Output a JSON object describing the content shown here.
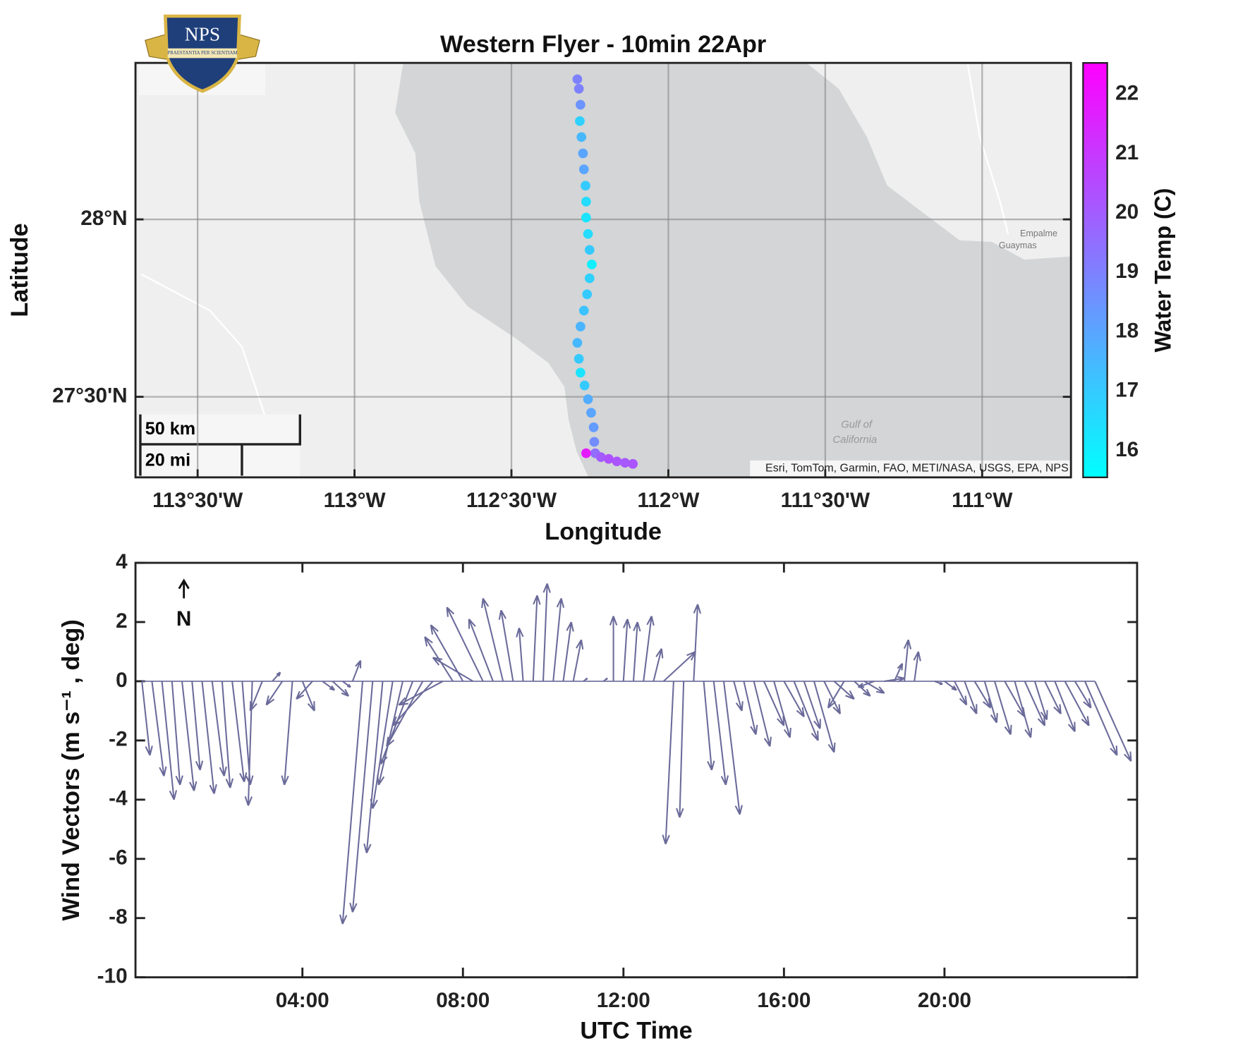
{
  "chart_data": [
    {
      "type": "scatter",
      "title": "Western Flyer - 10min 22Apr",
      "xlabel": "Longitude",
      "ylabel": "Latitude",
      "xlim": [
        -113.698,
        -110.717
      ],
      "ylim": [
        27.273,
        28.441
      ],
      "xticks": [
        {
          "value": -113.5,
          "label": "113°30'W"
        },
        {
          "value": -113,
          "label": "113°W"
        },
        {
          "value": -112.5,
          "label": "112°30'W"
        },
        {
          "value": -112,
          "label": "112°W"
        },
        {
          "value": -111.5,
          "label": "111°30'W"
        },
        {
          "value": -111,
          "label": "111°W"
        }
      ],
      "yticks": [
        {
          "value": 27.5,
          "label": "27°30'N"
        },
        {
          "value": 28,
          "label": "28°N"
        }
      ],
      "grid": true,
      "x": [
        -112.29,
        -112.285,
        -112.28,
        -112.282,
        -112.277,
        -112.272,
        -112.269,
        -112.264,
        -112.262,
        -112.262,
        -112.256,
        -112.251,
        -112.244,
        -112.251,
        -112.259,
        -112.269,
        -112.28,
        -112.29,
        -112.285,
        -112.28,
        -112.267,
        -112.256,
        -112.246,
        -112.238,
        -112.236,
        -112.233,
        -112.262,
        -112.215,
        -112.19,
        -112.164,
        -112.138,
        -112.113
      ],
      "y": [
        28.395,
        28.368,
        28.323,
        28.277,
        28.232,
        28.186,
        28.141,
        28.095,
        28.05,
        28.005,
        27.959,
        27.914,
        27.873,
        27.834,
        27.789,
        27.743,
        27.698,
        27.652,
        27.607,
        27.568,
        27.532,
        27.493,
        27.455,
        27.414,
        27.373,
        27.341,
        27.341,
        27.33,
        27.325,
        27.318,
        27.314,
        27.311
      ],
      "values": [
        19,
        19,
        18.5,
        16.8,
        17.5,
        18,
        18,
        17,
        16.5,
        16.3,
        16.5,
        17,
        16,
        16.8,
        17,
        17.2,
        17.6,
        17.5,
        17,
        16.3,
        17,
        17.8,
        18,
        18.3,
        18.7,
        19.5,
        21.8,
        20,
        20.3,
        20.2,
        20.1,
        20.2
      ],
      "colormap": "cool",
      "clim": [
        15.55,
        22.53
      ],
      "cticks": [
        16,
        17,
        18,
        19,
        20,
        21,
        22
      ],
      "colorbar_label": "Water Temp (C)",
      "place_labels": [
        "Gulf of",
        "California",
        "Empalme",
        "Guaymas"
      ],
      "scale_labels": [
        "50 km",
        "20 mi"
      ],
      "attribution": "Esri, TomTom, Garmin, FAO, METI/NASA, USGS, EPA, NPS",
      "logo": {
        "text": "NPS",
        "motto": "PRAESTANTIA PER SCIENTIAM"
      }
    },
    {
      "type": "quiver",
      "xlabel": "UTC Time",
      "ylabel": "Wind Vectors (m s⁻¹ , deg)",
      "north_label": "N",
      "color": "#6a6a9a",
      "xlim": [
        -0.16,
        24.8
      ],
      "ylim": [
        -10,
        4
      ],
      "xticks": [
        {
          "value": 4,
          "label": "04:00"
        },
        {
          "value": 8,
          "label": "08:00"
        },
        {
          "value": 12,
          "label": "12:00"
        },
        {
          "value": 16,
          "label": "16:00"
        },
        {
          "value": 20,
          "label": "20:00"
        }
      ],
      "yticks": [
        -10,
        -8,
        -6,
        -4,
        -2,
        0,
        2,
        4
      ],
      "x": [
        0,
        0.25,
        0.5,
        0.75,
        1,
        1.25,
        1.5,
        1.75,
        2,
        2.25,
        2.5,
        2.75,
        3,
        3.25,
        3.5,
        3.75,
        4,
        4.25,
        4.5,
        4.75,
        5,
        5.25,
        5.5,
        5.75,
        6,
        6.25,
        6.5,
        6.75,
        7,
        7.25,
        7.5,
        7.75,
        8,
        8.25,
        8.5,
        8.75,
        9,
        9.25,
        9.5,
        9.75,
        10,
        10.25,
        10.5,
        10.75,
        11,
        11.25,
        11.5,
        11.75,
        12,
        12.25,
        12.5,
        12.75,
        13,
        13.25,
        13.5,
        13.75,
        14,
        14.25,
        14.5,
        14.75,
        15,
        15.25,
        15.5,
        15.75,
        16,
        16.25,
        16.5,
        16.75,
        17,
        17.25,
        17.5,
        17.75,
        18,
        18.25,
        18.5,
        18.75,
        19,
        19.25,
        19.5,
        19.75,
        20,
        20.25,
        20.5,
        20.75,
        21,
        21.25,
        21.5,
        21.75,
        22,
        22.25,
        22.5,
        22.75,
        23,
        23.25,
        23.5,
        23.75
      ],
      "u": [
        0.2,
        0.3,
        0.3,
        0.2,
        0.3,
        0.2,
        0.3,
        0.3,
        0.2,
        0.3,
        0.2,
        -0.1,
        -0.3,
        0.2,
        -0.4,
        -0.2,
        0.3,
        -0.4,
        0.3,
        0.4,
        0.2,
        0.2,
        -0.5,
        -0.5,
        -0.4,
        -0.5,
        -0.6,
        -0.8,
        -0.9,
        -1.0,
        -1.1,
        -0.7,
        -0.8,
        -1.0,
        -0.9,
        -0.6,
        -0.5,
        -0.3,
        -0.1,
        0.1,
        0.1,
        0.2,
        0.2,
        0.2,
        0.1,
        0,
        0.1,
        0,
        0.1,
        0.1,
        0.2,
        0.2,
        0.8,
        -0.2,
        -0.1,
        0.1,
        0.2,
        0.3,
        0.4,
        0.2,
        0.3,
        0.4,
        0.5,
        0.4,
        0.5,
        0.6,
        0.4,
        0.5,
        0.4,
        0.5,
        -0.4,
        0.4,
        0.5,
        -0.4,
        0.5,
        0.2,
        0.1,
        0.1,
        0,
        0.2,
        0.3,
        0.3,
        0.3,
        0.4,
        0.3,
        0.4,
        0.5,
        0.4,
        0.5,
        0.3,
        0.4,
        0.5,
        0.6,
        0.4,
        0.8,
        0.9
      ],
      "v": [
        -2.5,
        -3.2,
        -4.0,
        -3.5,
        -3.7,
        -3.0,
        -3.8,
        -3.2,
        -3.6,
        -3.4,
        -3.5,
        -4.2,
        -1.0,
        0.3,
        -0.8,
        -3.5,
        -1.0,
        -0.6,
        -0.3,
        -0.5,
        -0.2,
        0.7,
        -8.2,
        -7.8,
        -5.8,
        -4.3,
        -3.5,
        -2.8,
        -2.2,
        -1.5,
        -0.8,
        1.5,
        1.9,
        0.8,
        2.5,
        2.1,
        2.8,
        2.4,
        1.8,
        2.9,
        3.3,
        2.8,
        2.0,
        1.4,
        0.1,
        0,
        0.1,
        2.2,
        2.1,
        2.0,
        2.2,
        1.1,
        1.0,
        -5.5,
        -4.6,
        2.6,
        -3.0,
        -3.5,
        -4.5,
        -1.0,
        -1.8,
        -2.2,
        -1.5,
        -1.9,
        -1.2,
        -2.0,
        -1.6,
        -2.4,
        -1.1,
        -0.6,
        -0.9,
        -0.5,
        -0.4,
        -0.2,
        0.1,
        0.6,
        1.4,
        1.0,
        0,
        -0.1,
        -0.3,
        -0.8,
        -1.1,
        -0.9,
        -1.4,
        -1.8,
        -1.2,
        -1.9,
        -1.5,
        -1.3,
        -1.1,
        -1.7,
        -1.5,
        -0.9,
        -2.5,
        -2.7
      ]
    }
  ]
}
